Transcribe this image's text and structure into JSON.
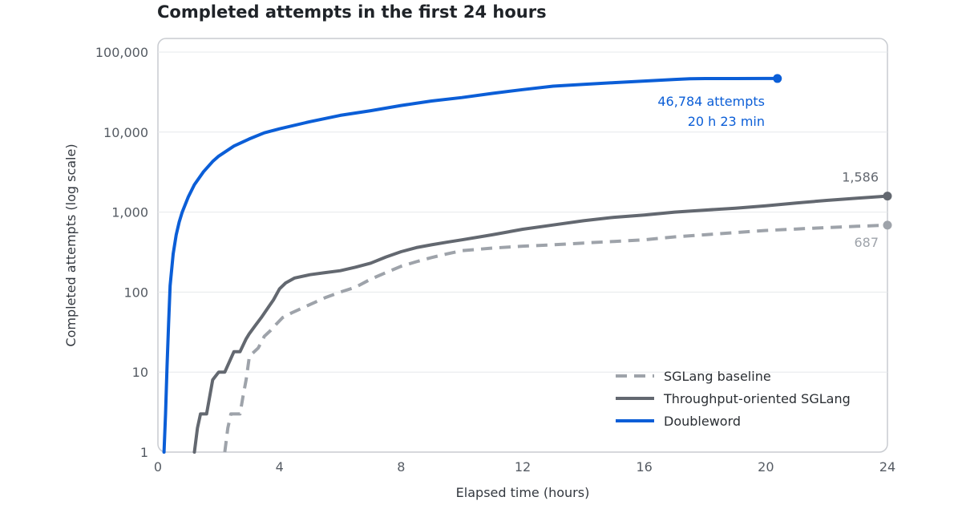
{
  "chart_data": {
    "type": "line",
    "title": "Completed attempts in the first 24 hours",
    "xlabel": "Elapsed time (hours)",
    "ylabel": "Completed attempts (log scale)",
    "xlim": [
      0,
      24
    ],
    "ylim": [
      1,
      100000
    ],
    "yscale": "log",
    "x_ticks": [
      0,
      4,
      8,
      12,
      16,
      20,
      24
    ],
    "x_tick_labels": [
      "0",
      "4",
      "8",
      "12",
      "16",
      "20",
      "24"
    ],
    "y_ticks": [
      1,
      10,
      100,
      1000,
      10000,
      100000
    ],
    "y_tick_labels": [
      "1",
      "10",
      "100",
      "1,000",
      "10,000",
      "100,000"
    ],
    "grid": "horizontal",
    "legend": "bottom-right",
    "series": [
      {
        "name": "SGLang baseline",
        "color": "#9ea3aa",
        "dash": true,
        "x": [
          2.2,
          2.3,
          2.4,
          2.7,
          2.8,
          2.9,
          3.0,
          3.1,
          3.3,
          3.5,
          3.7,
          3.9,
          4.1,
          4.4,
          4.7,
          5.0,
          5.5,
          6.0,
          6.5,
          7.0,
          7.5,
          8.0,
          8.5,
          9.0,
          9.5,
          10.0,
          11.0,
          12.0,
          13.0,
          14.0,
          15.0,
          16.0,
          17.0,
          18.0,
          19.0,
          20.0,
          21.0,
          22.0,
          23.0,
          24.0
        ],
        "y": [
          1,
          2,
          3,
          3,
          5,
          8,
          15,
          17,
          20,
          28,
          33,
          40,
          48,
          55,
          62,
          70,
          85,
          100,
          115,
          145,
          175,
          210,
          240,
          270,
          300,
          330,
          355,
          375,
          390,
          410,
          430,
          450,
          490,
          520,
          555,
          590,
          615,
          640,
          665,
          687
        ],
        "end_label": "687"
      },
      {
        "name": "Throughput-oriented SGLang",
        "color": "#636870",
        "dash": false,
        "x": [
          1.2,
          1.3,
          1.4,
          1.6,
          1.8,
          2.0,
          2.2,
          2.5,
          2.7,
          2.9,
          3.0,
          3.2,
          3.4,
          3.6,
          3.8,
          4.0,
          4.2,
          4.5,
          5.0,
          5.5,
          6.0,
          6.5,
          7.0,
          7.5,
          8.0,
          8.5,
          9.0,
          9.5,
          10.0,
          11.0,
          12.0,
          13.0,
          14.0,
          15.0,
          16.0,
          17.0,
          18.0,
          19.0,
          20.0,
          21.0,
          22.0,
          23.0,
          24.0
        ],
        "y": [
          1,
          2,
          3,
          3,
          8,
          10,
          10,
          18,
          18,
          26,
          30,
          38,
          48,
          62,
          80,
          110,
          130,
          150,
          165,
          175,
          185,
          205,
          230,
          275,
          320,
          360,
          390,
          420,
          450,
          520,
          610,
          690,
          780,
          860,
          920,
          1000,
          1060,
          1120,
          1200,
          1300,
          1400,
          1490,
          1586
        ],
        "end_label": "1,586"
      },
      {
        "name": "Doubleword",
        "color": "#0b5ed7",
        "dash": false,
        "x": [
          0.2,
          0.25,
          0.3,
          0.35,
          0.4,
          0.5,
          0.6,
          0.7,
          0.8,
          1.0,
          1.2,
          1.5,
          1.8,
          2.0,
          2.5,
          3.0,
          3.5,
          4.0,
          5.0,
          6.0,
          7.0,
          8.0,
          9.0,
          10.0,
          11.0,
          12.0,
          13.0,
          14.0,
          15.0,
          16.0,
          17.0,
          17.5,
          18.0,
          19.0,
          20.0,
          20.38
        ],
        "y": [
          1,
          3,
          12,
          40,
          120,
          300,
          520,
          750,
          1000,
          1550,
          2200,
          3200,
          4300,
          5000,
          6700,
          8200,
          9800,
          11000,
          13500,
          16200,
          18500,
          21500,
          24500,
          27000,
          30500,
          34000,
          37500,
          39500,
          41500,
          43500,
          45500,
          46500,
          46700,
          46750,
          46780,
          46784
        ],
        "end_label": "46,784 attempts",
        "end_label_2": "20 h 23 min"
      }
    ]
  }
}
